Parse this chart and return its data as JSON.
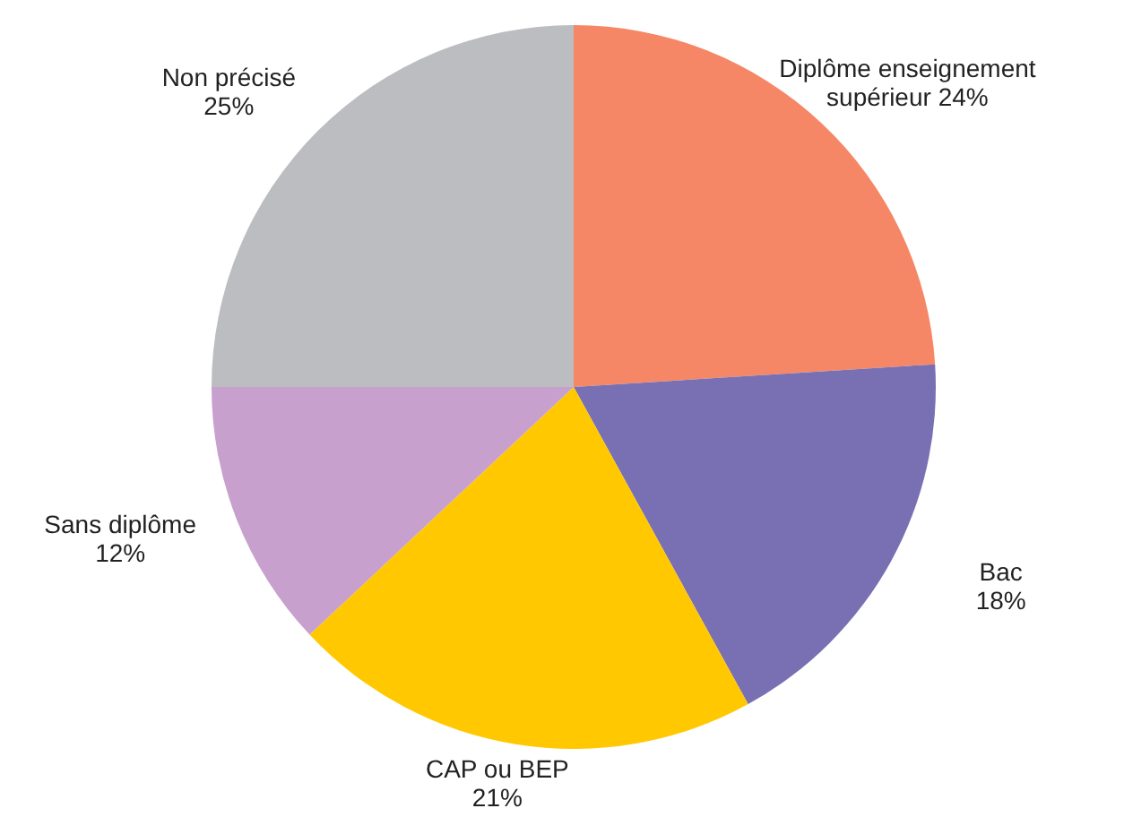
{
  "chart_data": {
    "type": "pie",
    "categories": [
      "Diplôme enseignement supérieur",
      "Bac",
      "CAP ou BEP",
      "Sans diplôme",
      "Non précisé"
    ],
    "values": [
      24,
      18,
      21,
      12,
      25
    ],
    "colors": [
      "#f58766",
      "#7870b3",
      "#ffc800",
      "#c8a0cd",
      "#bcbdc0"
    ],
    "value_labels": [
      "24%",
      "18%",
      "21%",
      "12%",
      "25%"
    ]
  }
}
